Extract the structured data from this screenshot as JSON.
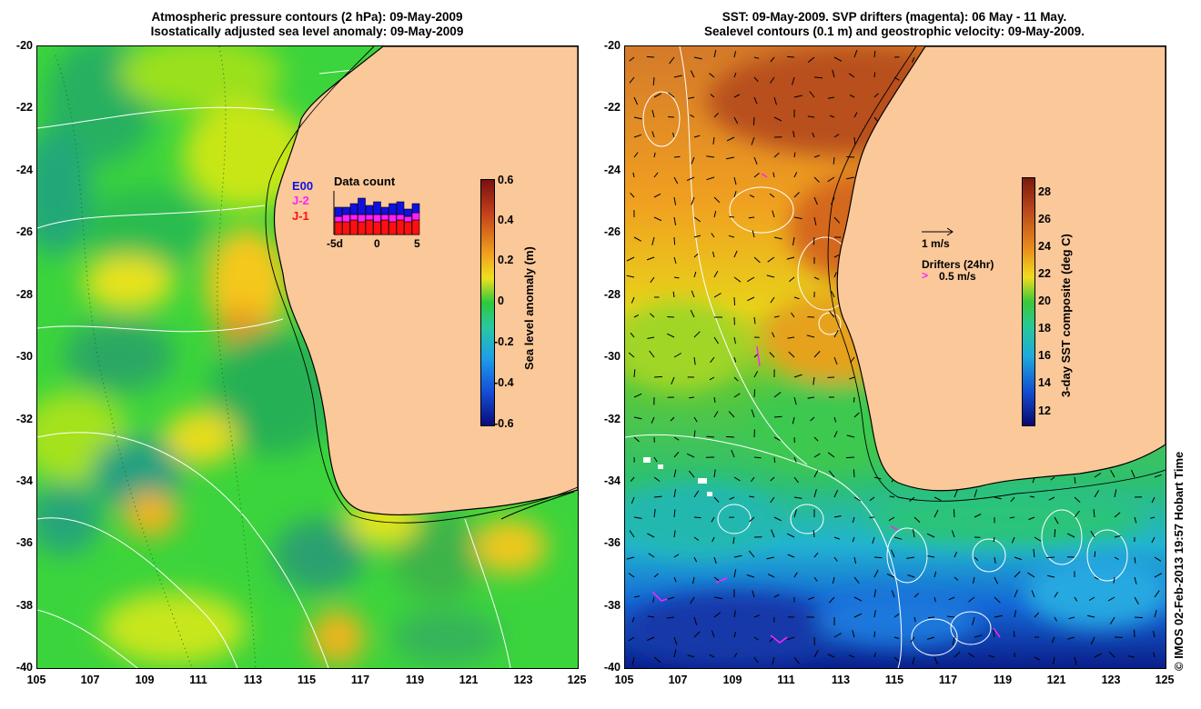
{
  "left_map": {
    "title_line1": "Atmospheric pressure contours (2 hPa): 09-May-2009",
    "title_line2": "Isostatically adjusted sea level anomaly: 09-May-2009",
    "colorbar": {
      "label": "Sea level anomaly (m)",
      "ticks": [
        "0.6",
        "0.4",
        "0.2",
        "0",
        "-0.2",
        "-0.4",
        "-0.6"
      ],
      "range": [
        -0.6,
        0.6
      ]
    },
    "data_count": {
      "title": "Data count",
      "sat_labels": [
        "E00",
        "J-2",
        "J-1"
      ],
      "sat_colors": [
        "#1010e0",
        "#ff20ff",
        "#ff1010"
      ],
      "axis_labels": [
        "-5d",
        "0",
        "5"
      ]
    }
  },
  "right_map": {
    "title_line1": "SST: 09-May-2009. SVP drifters (magenta): 06 May - 11 May.",
    "title_line2": "Sealevel contours (0.1 m) and geostrophic velocity: 09-May-2009.",
    "colorbar": {
      "label": "3-day SST composite (deg C)",
      "ticks": [
        "28",
        "26",
        "24",
        "22",
        "20",
        "18",
        "16",
        "14",
        "12"
      ],
      "range": [
        11,
        29
      ]
    },
    "vector_legend": "1 m/s",
    "drifter_legend_title": "Drifters (24hr)",
    "drifter_legend_value": "0.5 m/s"
  },
  "axes": {
    "lat_ticks": [
      "-20",
      "-22",
      "-24",
      "-26",
      "-28",
      "-30",
      "-32",
      "-34",
      "-36",
      "-38",
      "-40"
    ],
    "lon_ticks": [
      "105",
      "107",
      "109",
      "111",
      "113",
      "115",
      "117",
      "119",
      "121",
      "123",
      "125"
    ]
  },
  "credit": "© IMOS 02-Feb-2013 19:57 Hobart Time",
  "colors": {
    "land": "#fbc89a",
    "coast": "#000000",
    "contour": "#ffffff",
    "drifter": "#ff20ff"
  }
}
